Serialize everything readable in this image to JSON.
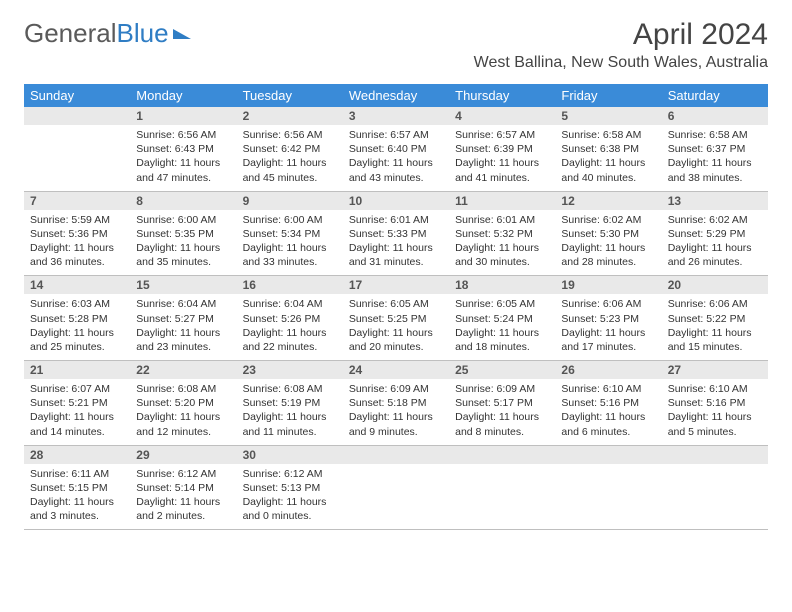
{
  "logo": {
    "text1": "General",
    "text2": "Blue"
  },
  "title": "April 2024",
  "location": "West Ballina, New South Wales, Australia",
  "colors": {
    "header_bg": "#3a8bd8",
    "header_fg": "#ffffff",
    "daynum_bg": "#e9e9e9",
    "border": "#bfbfbf",
    "logo_gray": "#5a5a5a",
    "logo_blue": "#2f7dc4"
  },
  "dayNames": [
    "Sunday",
    "Monday",
    "Tuesday",
    "Wednesday",
    "Thursday",
    "Friday",
    "Saturday"
  ],
  "weeks": [
    [
      null,
      {
        "n": "1",
        "sr": "Sunrise: 6:56 AM",
        "ss": "Sunset: 6:43 PM",
        "dl1": "Daylight: 11 hours",
        "dl2": "and 47 minutes."
      },
      {
        "n": "2",
        "sr": "Sunrise: 6:56 AM",
        "ss": "Sunset: 6:42 PM",
        "dl1": "Daylight: 11 hours",
        "dl2": "and 45 minutes."
      },
      {
        "n": "3",
        "sr": "Sunrise: 6:57 AM",
        "ss": "Sunset: 6:40 PM",
        "dl1": "Daylight: 11 hours",
        "dl2": "and 43 minutes."
      },
      {
        "n": "4",
        "sr": "Sunrise: 6:57 AM",
        "ss": "Sunset: 6:39 PM",
        "dl1": "Daylight: 11 hours",
        "dl2": "and 41 minutes."
      },
      {
        "n": "5",
        "sr": "Sunrise: 6:58 AM",
        "ss": "Sunset: 6:38 PM",
        "dl1": "Daylight: 11 hours",
        "dl2": "and 40 minutes."
      },
      {
        "n": "6",
        "sr": "Sunrise: 6:58 AM",
        "ss": "Sunset: 6:37 PM",
        "dl1": "Daylight: 11 hours",
        "dl2": "and 38 minutes."
      }
    ],
    [
      {
        "n": "7",
        "sr": "Sunrise: 5:59 AM",
        "ss": "Sunset: 5:36 PM",
        "dl1": "Daylight: 11 hours",
        "dl2": "and 36 minutes."
      },
      {
        "n": "8",
        "sr": "Sunrise: 6:00 AM",
        "ss": "Sunset: 5:35 PM",
        "dl1": "Daylight: 11 hours",
        "dl2": "and 35 minutes."
      },
      {
        "n": "9",
        "sr": "Sunrise: 6:00 AM",
        "ss": "Sunset: 5:34 PM",
        "dl1": "Daylight: 11 hours",
        "dl2": "and 33 minutes."
      },
      {
        "n": "10",
        "sr": "Sunrise: 6:01 AM",
        "ss": "Sunset: 5:33 PM",
        "dl1": "Daylight: 11 hours",
        "dl2": "and 31 minutes."
      },
      {
        "n": "11",
        "sr": "Sunrise: 6:01 AM",
        "ss": "Sunset: 5:32 PM",
        "dl1": "Daylight: 11 hours",
        "dl2": "and 30 minutes."
      },
      {
        "n": "12",
        "sr": "Sunrise: 6:02 AM",
        "ss": "Sunset: 5:30 PM",
        "dl1": "Daylight: 11 hours",
        "dl2": "and 28 minutes."
      },
      {
        "n": "13",
        "sr": "Sunrise: 6:02 AM",
        "ss": "Sunset: 5:29 PM",
        "dl1": "Daylight: 11 hours",
        "dl2": "and 26 minutes."
      }
    ],
    [
      {
        "n": "14",
        "sr": "Sunrise: 6:03 AM",
        "ss": "Sunset: 5:28 PM",
        "dl1": "Daylight: 11 hours",
        "dl2": "and 25 minutes."
      },
      {
        "n": "15",
        "sr": "Sunrise: 6:04 AM",
        "ss": "Sunset: 5:27 PM",
        "dl1": "Daylight: 11 hours",
        "dl2": "and 23 minutes."
      },
      {
        "n": "16",
        "sr": "Sunrise: 6:04 AM",
        "ss": "Sunset: 5:26 PM",
        "dl1": "Daylight: 11 hours",
        "dl2": "and 22 minutes."
      },
      {
        "n": "17",
        "sr": "Sunrise: 6:05 AM",
        "ss": "Sunset: 5:25 PM",
        "dl1": "Daylight: 11 hours",
        "dl2": "and 20 minutes."
      },
      {
        "n": "18",
        "sr": "Sunrise: 6:05 AM",
        "ss": "Sunset: 5:24 PM",
        "dl1": "Daylight: 11 hours",
        "dl2": "and 18 minutes."
      },
      {
        "n": "19",
        "sr": "Sunrise: 6:06 AM",
        "ss": "Sunset: 5:23 PM",
        "dl1": "Daylight: 11 hours",
        "dl2": "and 17 minutes."
      },
      {
        "n": "20",
        "sr": "Sunrise: 6:06 AM",
        "ss": "Sunset: 5:22 PM",
        "dl1": "Daylight: 11 hours",
        "dl2": "and 15 minutes."
      }
    ],
    [
      {
        "n": "21",
        "sr": "Sunrise: 6:07 AM",
        "ss": "Sunset: 5:21 PM",
        "dl1": "Daylight: 11 hours",
        "dl2": "and 14 minutes."
      },
      {
        "n": "22",
        "sr": "Sunrise: 6:08 AM",
        "ss": "Sunset: 5:20 PM",
        "dl1": "Daylight: 11 hours",
        "dl2": "and 12 minutes."
      },
      {
        "n": "23",
        "sr": "Sunrise: 6:08 AM",
        "ss": "Sunset: 5:19 PM",
        "dl1": "Daylight: 11 hours",
        "dl2": "and 11 minutes."
      },
      {
        "n": "24",
        "sr": "Sunrise: 6:09 AM",
        "ss": "Sunset: 5:18 PM",
        "dl1": "Daylight: 11 hours",
        "dl2": "and 9 minutes."
      },
      {
        "n": "25",
        "sr": "Sunrise: 6:09 AM",
        "ss": "Sunset: 5:17 PM",
        "dl1": "Daylight: 11 hours",
        "dl2": "and 8 minutes."
      },
      {
        "n": "26",
        "sr": "Sunrise: 6:10 AM",
        "ss": "Sunset: 5:16 PM",
        "dl1": "Daylight: 11 hours",
        "dl2": "and 6 minutes."
      },
      {
        "n": "27",
        "sr": "Sunrise: 6:10 AM",
        "ss": "Sunset: 5:16 PM",
        "dl1": "Daylight: 11 hours",
        "dl2": "and 5 minutes."
      }
    ],
    [
      {
        "n": "28",
        "sr": "Sunrise: 6:11 AM",
        "ss": "Sunset: 5:15 PM",
        "dl1": "Daylight: 11 hours",
        "dl2": "and 3 minutes."
      },
      {
        "n": "29",
        "sr": "Sunrise: 6:12 AM",
        "ss": "Sunset: 5:14 PM",
        "dl1": "Daylight: 11 hours",
        "dl2": "and 2 minutes."
      },
      {
        "n": "30",
        "sr": "Sunrise: 6:12 AM",
        "ss": "Sunset: 5:13 PM",
        "dl1": "Daylight: 11 hours",
        "dl2": "and 0 minutes."
      },
      null,
      null,
      null,
      null
    ]
  ]
}
